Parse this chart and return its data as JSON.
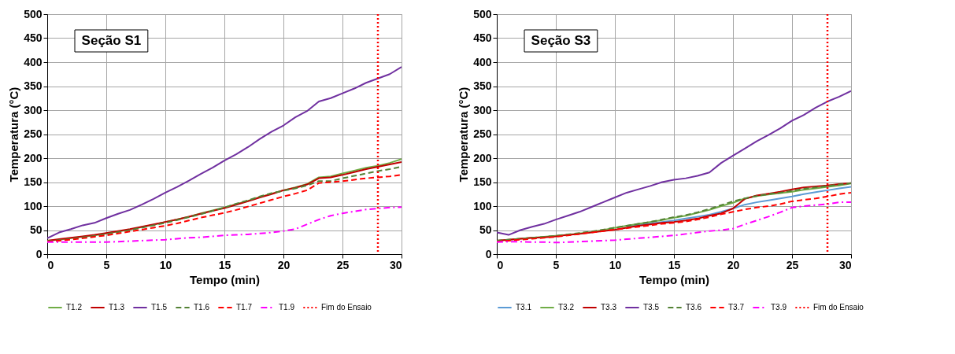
{
  "chart_data": [
    {
      "type": "line",
      "title": "Seção S1",
      "xlabel": "Tempo (min)",
      "ylabel": "Temperatura (°C)",
      "xlim": [
        0,
        30
      ],
      "xticks": [
        0,
        5,
        10,
        15,
        20,
        25,
        30
      ],
      "ylim": [
        0,
        500
      ],
      "yticks": [
        0,
        50,
        100,
        150,
        200,
        250,
        300,
        350,
        400,
        450,
        500
      ],
      "grid": true,
      "legend": "bottom",
      "marker": "none",
      "x": [
        0,
        1,
        2,
        3,
        4,
        5,
        6,
        7,
        8,
        9,
        10,
        11,
        12,
        13,
        14,
        15,
        16,
        17,
        18,
        19,
        20,
        21,
        22,
        23,
        24,
        25,
        26,
        27,
        28,
        29,
        30
      ],
      "series": [
        {
          "name": "T1.2",
          "color": "#70ad47",
          "line_style": "solid",
          "values": [
            28,
            30,
            33,
            36,
            39,
            43,
            47,
            51,
            56,
            61,
            67,
            72,
            78,
            85,
            91,
            97,
            104,
            111,
            119,
            126,
            133,
            139,
            146,
            160,
            162,
            168,
            174,
            180,
            184,
            190,
            198
          ]
        },
        {
          "name": "T1.3",
          "color": "#c00000",
          "line_style": "solid",
          "values": [
            28,
            31,
            34,
            37,
            40,
            44,
            48,
            52,
            57,
            62,
            67,
            72,
            78,
            84,
            90,
            96,
            103,
            110,
            118,
            125,
            133,
            138,
            145,
            158,
            160,
            165,
            171,
            177,
            182,
            187,
            192
          ]
        },
        {
          "name": "T1.5",
          "color": "#7030a0",
          "line_style": "solid",
          "values": [
            33,
            45,
            52,
            60,
            65,
            75,
            84,
            92,
            103,
            115,
            128,
            140,
            153,
            167,
            180,
            195,
            208,
            223,
            240,
            255,
            268,
            285,
            298,
            318,
            325,
            335,
            345,
            357,
            366,
            375,
            390
          ]
        },
        {
          "name": "T1.6",
          "color": "#548235",
          "line_style": "dashed",
          "values": [
            27,
            29,
            32,
            35,
            38,
            42,
            46,
            50,
            55,
            60,
            65,
            71,
            77,
            83,
            90,
            97,
            105,
            112,
            120,
            127,
            132,
            137,
            143,
            152,
            152,
            158,
            163,
            168,
            173,
            177,
            182
          ]
        },
        {
          "name": "T1.7",
          "color": "#ff0000",
          "line_style": "dashed",
          "values": [
            26,
            28,
            30,
            33,
            36,
            39,
            43,
            47,
            51,
            55,
            59,
            64,
            70,
            76,
            81,
            86,
            92,
            99,
            106,
            113,
            120,
            126,
            133,
            148,
            150,
            152,
            155,
            158,
            160,
            162,
            165
          ]
        },
        {
          "name": "T1.9",
          "color": "#ff00ff",
          "line_style": "dashdot",
          "values": [
            25,
            25,
            25,
            25,
            25,
            25,
            26,
            27,
            28,
            29,
            30,
            32,
            34,
            35,
            37,
            39,
            40,
            41,
            43,
            45,
            48,
            52,
            62,
            72,
            80,
            85,
            89,
            93,
            95,
            97,
            98
          ]
        }
      ],
      "ref_lines": [
        {
          "axis": "x",
          "value": 28,
          "label": "Fim do Ensaio",
          "color": "#ff0000",
          "line_style": "dotted"
        }
      ]
    },
    {
      "type": "line",
      "title": "Seção S3",
      "xlabel": "Tempo (min)",
      "ylabel": "Temperatura (°C)",
      "xlim": [
        0,
        30
      ],
      "xticks": [
        0,
        5,
        10,
        15,
        20,
        25,
        30
      ],
      "ylim": [
        0,
        500
      ],
      "yticks": [
        0,
        50,
        100,
        150,
        200,
        250,
        300,
        350,
        400,
        450,
        500
      ],
      "grid": true,
      "legend": "bottom",
      "marker": "none",
      "x": [
        0,
        1,
        2,
        3,
        4,
        5,
        6,
        7,
        8,
        9,
        10,
        11,
        12,
        13,
        14,
        15,
        16,
        17,
        18,
        19,
        20,
        21,
        22,
        23,
        24,
        25,
        26,
        27,
        28,
        29,
        30
      ],
      "series": [
        {
          "name": "T3.1",
          "color": "#5b9bd5",
          "line_style": "solid",
          "values": [
            null,
            null,
            null,
            null,
            null,
            null,
            null,
            null,
            null,
            null,
            null,
            57,
            61,
            64,
            67,
            70,
            74,
            78,
            82,
            88,
            95,
            103,
            108,
            112,
            116,
            120,
            125,
            129,
            133,
            137,
            140
          ]
        },
        {
          "name": "T3.2",
          "color": "#70ad47",
          "line_style": "solid",
          "values": [
            28,
            30,
            32,
            34,
            36,
            38,
            40,
            43,
            46,
            50,
            55,
            59,
            63,
            67,
            71,
            76,
            80,
            86,
            92,
            100,
            107,
            116,
            121,
            124,
            127,
            130,
            134,
            137,
            140,
            143,
            147
          ]
        },
        {
          "name": "T3.3",
          "color": "#c00000",
          "line_style": "solid",
          "values": [
            28,
            30,
            32,
            34,
            35,
            37,
            40,
            42,
            45,
            48,
            51,
            55,
            59,
            62,
            65,
            67,
            70,
            74,
            80,
            85,
            95,
            115,
            122,
            126,
            130,
            135,
            139,
            141,
            143,
            146,
            148
          ]
        },
        {
          "name": "T3.5",
          "color": "#7030a0",
          "line_style": "solid",
          "values": [
            45,
            40,
            50,
            57,
            63,
            72,
            80,
            88,
            98,
            108,
            118,
            128,
            135,
            142,
            150,
            155,
            158,
            163,
            170,
            190,
            205,
            220,
            235,
            248,
            262,
            278,
            290,
            305,
            318,
            328,
            340
          ]
        },
        {
          "name": "T3.6",
          "color": "#548235",
          "line_style": "dashed",
          "values": [
            28,
            30,
            32,
            34,
            36,
            38,
            41,
            44,
            47,
            51,
            55,
            59,
            63,
            67,
            72,
            77,
            81,
            87,
            94,
            102,
            110,
            116,
            121,
            125,
            128,
            132,
            136,
            139,
            142,
            145,
            148
          ]
        },
        {
          "name": "T3.7",
          "color": "#ff0000",
          "line_style": "dashed",
          "values": [
            26,
            28,
            30,
            32,
            34,
            36,
            39,
            42,
            45,
            48,
            51,
            54,
            57,
            60,
            63,
            65,
            68,
            72,
            77,
            83,
            88,
            93,
            97,
            100,
            104,
            110,
            113,
            116,
            120,
            125,
            128
          ]
        },
        {
          "name": "T3.9",
          "color": "#ff00ff",
          "line_style": "dashdot",
          "values": [
            25,
            26,
            26,
            25,
            25,
            24,
            25,
            26,
            27,
            28,
            29,
            31,
            33,
            35,
            37,
            39,
            42,
            45,
            48,
            50,
            53,
            62,
            70,
            78,
            87,
            97,
            100,
            102,
            104,
            108,
            108
          ]
        }
      ],
      "ref_lines": [
        {
          "axis": "x",
          "value": 28,
          "label": "Fim do Ensaio",
          "color": "#ff0000",
          "line_style": "dotted"
        }
      ]
    }
  ]
}
